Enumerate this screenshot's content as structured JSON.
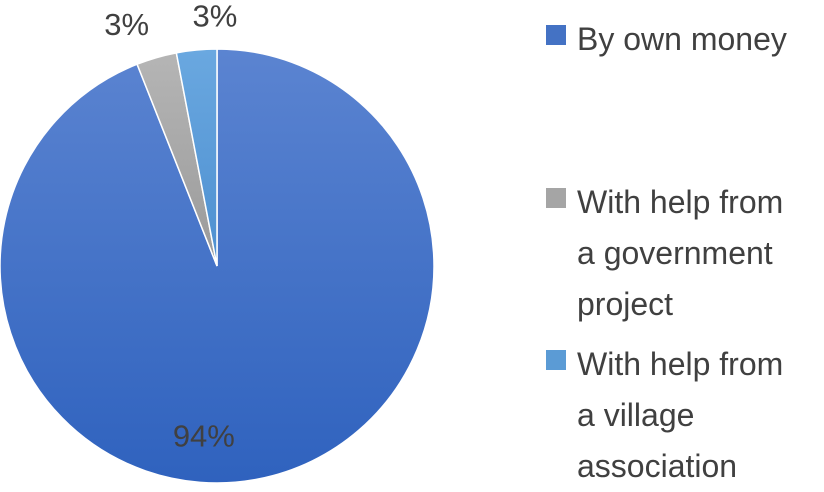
{
  "chart_data": {
    "type": "pie",
    "start_angle_deg": 0,
    "direction": "clockwise",
    "slices": [
      {
        "label": "By own money",
        "value": 94,
        "display": "94%",
        "color": "#4472c4"
      },
      {
        "label": "With help from a government project",
        "value": 3,
        "display": "3%",
        "color": "#a5a5a5"
      },
      {
        "label": "With help from a village association",
        "value": 3,
        "display": "3%",
        "color": "#5b9bd5"
      }
    ],
    "legend_position": "right",
    "label_color": "#404040"
  },
  "legend": {
    "items": [
      {
        "text": "By own money",
        "color": "#4472c4"
      },
      {
        "text": "With help from\na government\nproject",
        "color": "#a5a5a5"
      },
      {
        "text": "With help from\na village\nassociation",
        "color": "#5b9bd5"
      }
    ]
  }
}
